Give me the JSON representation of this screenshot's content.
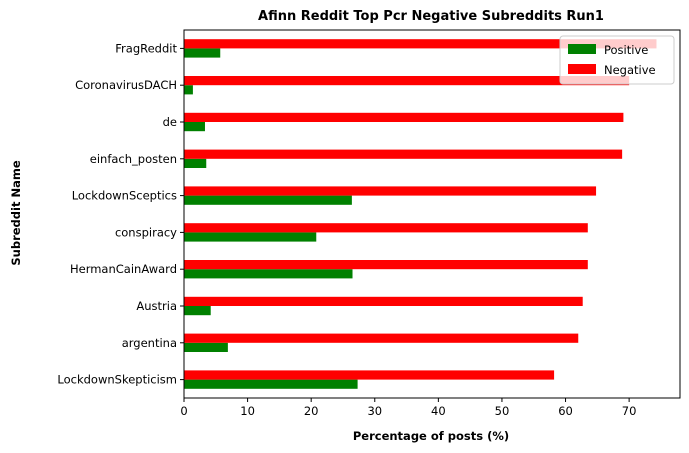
{
  "chart_data": {
    "type": "bar",
    "orientation": "horizontal",
    "title": "Afinn Reddit Top Pcr Negative Subreddits Run1",
    "xlabel": "Percentage of posts (%)",
    "ylabel": "Subreddit Name",
    "xlim": [
      0,
      78
    ],
    "xticks": [
      0,
      10,
      20,
      30,
      40,
      50,
      60,
      70
    ],
    "categories": [
      "FragReddit",
      "CoronavirusDACH",
      "de",
      "einfach_posten",
      "LockdownSceptics",
      "conspiracy",
      "HermanCainAward",
      "Austria",
      "argentina",
      "LockdownSkepticism"
    ],
    "series": [
      {
        "name": "Positive",
        "color": "#008000",
        "values": [
          5.7,
          1.4,
          3.3,
          3.5,
          26.4,
          20.8,
          26.5,
          4.2,
          6.9,
          27.3
        ]
      },
      {
        "name": "Negative",
        "color": "#ff0000",
        "values": [
          74.3,
          70.0,
          69.1,
          68.9,
          64.8,
          63.5,
          63.5,
          62.7,
          62.0,
          58.2
        ]
      }
    ],
    "legend_position": "top-right",
    "grid": false
  }
}
